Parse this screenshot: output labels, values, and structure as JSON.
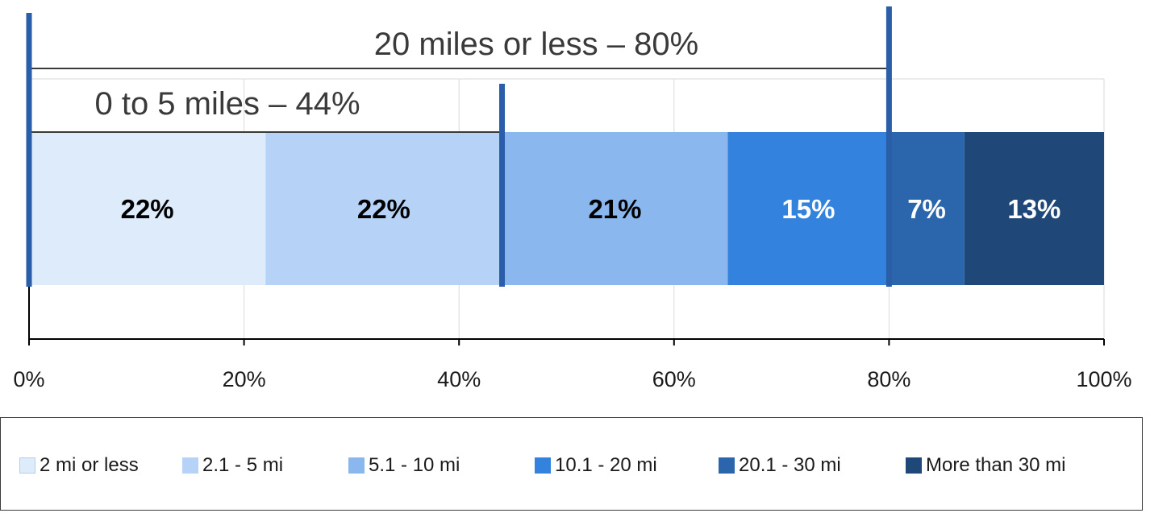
{
  "chart_data": {
    "type": "bar",
    "orientation": "horizontal",
    "stacked": true,
    "xlim": [
      0,
      100
    ],
    "x_ticks": [
      0,
      20,
      40,
      60,
      80,
      100
    ],
    "x_tick_labels": [
      "0%",
      "20%",
      "40%",
      "60%",
      "80%",
      "100%"
    ],
    "grid": true,
    "legend_position": "bottom",
    "series": [
      {
        "name": "2 mi or less",
        "value": 22,
        "label": "22%",
        "color": "#ddebfb",
        "label_color": "#000000"
      },
      {
        "name": "2.1 - 5 mi",
        "value": 22,
        "label": "22%",
        "color": "#b6d3f7",
        "label_color": "#000000"
      },
      {
        "name": "5.1 - 10 mi",
        "value": 21,
        "label": "21%",
        "color": "#89b7ee",
        "label_color": "#000000"
      },
      {
        "name": "10.1 - 20 mi",
        "value": 15,
        "label": "15%",
        "color": "#3383de",
        "label_color": "#ffffff"
      },
      {
        "name": "20.1 - 30 mi",
        "value": 7,
        "label": "7%",
        "color": "#2b66ad",
        "label_color": "#ffffff"
      },
      {
        "name": "More than 30 mi",
        "value": 13,
        "label": "13%",
        "color": "#1f4878",
        "label_color": "#ffffff"
      }
    ],
    "annotations": [
      {
        "text": "20 miles or less – 80%",
        "from": 0,
        "to": 80
      },
      {
        "text": "0 to 5 miles – 44%",
        "from": 0,
        "to": 44
      }
    ],
    "marker_lines_at": [
      0,
      44,
      80
    ],
    "marker_color": "#2a5ea8"
  }
}
